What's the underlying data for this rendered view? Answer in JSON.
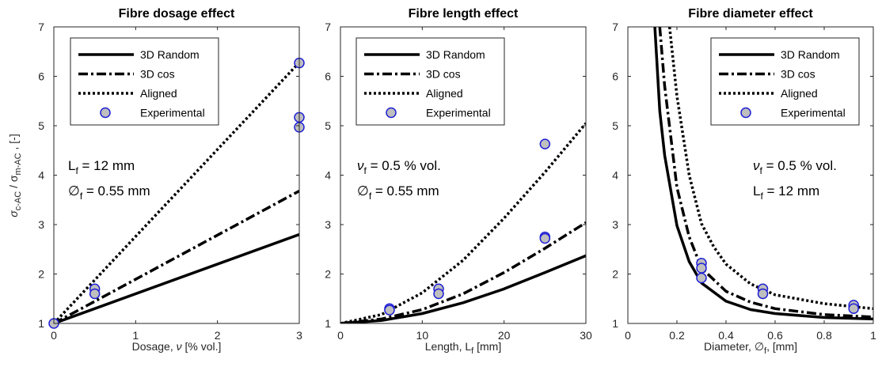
{
  "figure": {
    "ylabel": {
      "main": "σ",
      "sub1": "c-AC",
      "sep": " / σ",
      "sub2": "m-AC",
      "unit": " , [-]"
    }
  },
  "chart_data": [
    {
      "type": "line",
      "title": "Fibre dosage effect",
      "xlabel": {
        "main": "Dosage, ",
        "italic": "ν",
        "rest": " [% vol.]"
      },
      "xlim": [
        0,
        3
      ],
      "ylim": [
        1,
        7
      ],
      "xticks": [
        "0",
        "1",
        "2",
        "3"
      ],
      "yticks": [
        "1",
        "2",
        "3",
        "4",
        "5",
        "6",
        "7"
      ],
      "grid": false,
      "legend_position": "top-left",
      "series": [
        {
          "name": "3D Random",
          "style": "solid",
          "x": [
            0,
            3
          ],
          "y": [
            1.0,
            2.8
          ]
        },
        {
          "name": "3D cos",
          "style": "dashdot",
          "x": [
            0,
            3
          ],
          "y": [
            1.0,
            3.68
          ]
        },
        {
          "name": "Aligned",
          "style": "dotted",
          "x": [
            0,
            3
          ],
          "y": [
            1.0,
            6.28
          ]
        },
        {
          "name": "Experimental",
          "style": "marker",
          "x": [
            0,
            0.5,
            0.5,
            3,
            3,
            3
          ],
          "y": [
            1.0,
            1.7,
            1.6,
            6.27,
            5.17,
            4.97
          ]
        }
      ],
      "annotations": [
        {
          "main": "L",
          "sub": "f",
          "rest": " = 12 mm"
        },
        {
          "main": "∅",
          "sub": "f",
          "rest": " = 0.55 mm"
        }
      ]
    },
    {
      "type": "line",
      "title": "Fibre length effect",
      "xlabel": {
        "main": "Length, L",
        "sub": "f",
        "rest": " [mm]"
      },
      "xlim": [
        0,
        30
      ],
      "ylim": [
        1,
        7
      ],
      "xticks": [
        "0",
        "10",
        "20",
        "30"
      ],
      "yticks": [
        "1",
        "2",
        "3",
        "4",
        "5",
        "6",
        "7"
      ],
      "grid": false,
      "legend_position": "top-left",
      "series": [
        {
          "name": "3D Random",
          "style": "solid",
          "x": [
            0,
            5,
            10,
            15,
            20,
            25,
            30
          ],
          "y": [
            1.0,
            1.06,
            1.2,
            1.42,
            1.7,
            2.03,
            2.37
          ]
        },
        {
          "name": "3D cos",
          "style": "dashdot",
          "x": [
            0,
            5,
            10,
            15,
            20,
            25,
            30
          ],
          "y": [
            1.0,
            1.09,
            1.28,
            1.6,
            2.03,
            2.52,
            3.04
          ]
        },
        {
          "name": "Aligned",
          "style": "dotted",
          "x": [
            0,
            5,
            10,
            15,
            20,
            25,
            30
          ],
          "y": [
            1.0,
            1.18,
            1.62,
            2.28,
            3.13,
            4.06,
            5.05
          ]
        },
        {
          "name": "Experimental",
          "style": "marker",
          "x": [
            6,
            6,
            12,
            12,
            25,
            25,
            25
          ],
          "y": [
            1.3,
            1.27,
            1.7,
            1.6,
            4.63,
            2.75,
            2.72
          ]
        }
      ],
      "annotations": [
        {
          "main": "ν",
          "sub": "f",
          "rest": " = 0.5 % vol."
        },
        {
          "main": "∅",
          "sub": "f",
          "rest": " = 0.55 mm"
        }
      ]
    },
    {
      "type": "line",
      "title": "Fibre diameter effect",
      "xlabel": {
        "main": "Diameter, ∅",
        "sub": "f",
        "rest": ", [mm]"
      },
      "xlim": [
        0,
        1
      ],
      "ylim": [
        1,
        7
      ],
      "xticks": [
        "0",
        "0.2",
        "0.4",
        "0.6",
        "0.8",
        "1"
      ],
      "yticks": [
        "1",
        "2",
        "3",
        "4",
        "5",
        "6",
        "7"
      ],
      "grid": false,
      "legend_position": "top-right",
      "series": [
        {
          "name": "3D Random",
          "style": "solid",
          "x": [
            0.11,
            0.13,
            0.15,
            0.2,
            0.25,
            0.3,
            0.4,
            0.5,
            0.6,
            0.8,
            1.0
          ],
          "y": [
            7.0,
            5.3,
            4.4,
            2.98,
            2.25,
            1.82,
            1.45,
            1.28,
            1.2,
            1.12,
            1.09
          ]
        },
        {
          "name": "3D cos",
          "style": "dashdot",
          "x": [
            0.13,
            0.15,
            0.2,
            0.25,
            0.3,
            0.4,
            0.5,
            0.6,
            0.8,
            1.0
          ],
          "y": [
            7.0,
            5.8,
            3.75,
            2.75,
            2.12,
            1.65,
            1.43,
            1.3,
            1.18,
            1.13
          ]
        },
        {
          "name": "Aligned",
          "style": "dotted",
          "x": [
            0.17,
            0.2,
            0.25,
            0.3,
            0.35,
            0.4,
            0.5,
            0.6,
            0.8,
            1.0
          ],
          "y": [
            7.0,
            5.6,
            4.0,
            3.02,
            2.55,
            2.2,
            1.8,
            1.58,
            1.4,
            1.3
          ]
        },
        {
          "name": "Experimental",
          "style": "marker",
          "x": [
            0.3,
            0.3,
            0.3,
            0.55,
            0.55,
            0.92,
            0.92
          ],
          "y": [
            2.22,
            2.12,
            1.92,
            1.7,
            1.6,
            1.37,
            1.3
          ]
        }
      ],
      "annotations": [
        {
          "main": "ν",
          "sub": "f",
          "rest": " = 0.5 % vol."
        },
        {
          "main": "L",
          "sub": "f",
          "rest": " = 12 mm"
        }
      ]
    }
  ]
}
